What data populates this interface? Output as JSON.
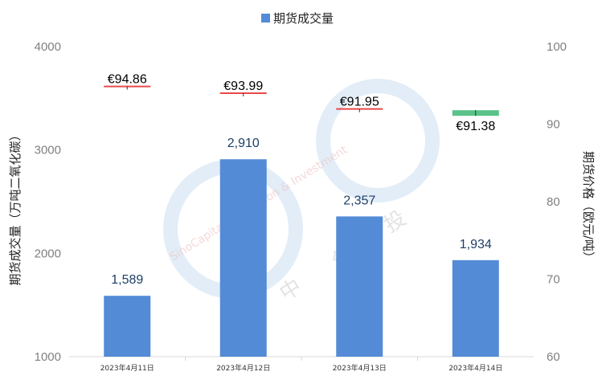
{
  "chart_data": {
    "type": "bar",
    "categories": [
      "2023年4月11日",
      "2023年4月12日",
      "2023年4月13日",
      "2023年4月14日"
    ],
    "series": [
      {
        "name": "期货成交量",
        "axis": "left",
        "values": [
          1589,
          2910,
          2357,
          1934
        ],
        "labels": [
          "1,589",
          "2,910",
          "2,357",
          "1,934"
        ]
      },
      {
        "axis": "right",
        "type": "marker",
        "values": [
          94.86,
          93.99,
          91.95,
          91.38
        ],
        "labels": [
          "€94.86",
          "€93.99",
          "€91.95",
          "€91.38"
        ]
      }
    ],
    "left_axis": {
      "label": "期货成交量（万吨二氧化碳）",
      "ylim": [
        1000,
        4000
      ],
      "ticks": [
        "1000",
        "2000",
        "3000",
        "4000"
      ]
    },
    "right_axis": {
      "label": "期货价格（欧元/吨）",
      "ylim": [
        60,
        100
      ],
      "ticks": [
        "60",
        "70",
        "80",
        "90",
        "100"
      ]
    },
    "legend": {
      "position": "top",
      "label": "期货成交量"
    },
    "colors": {
      "bar": "#538bd6",
      "price_down": "#e84a4a",
      "price_highlight": "#5bc38a"
    }
  }
}
